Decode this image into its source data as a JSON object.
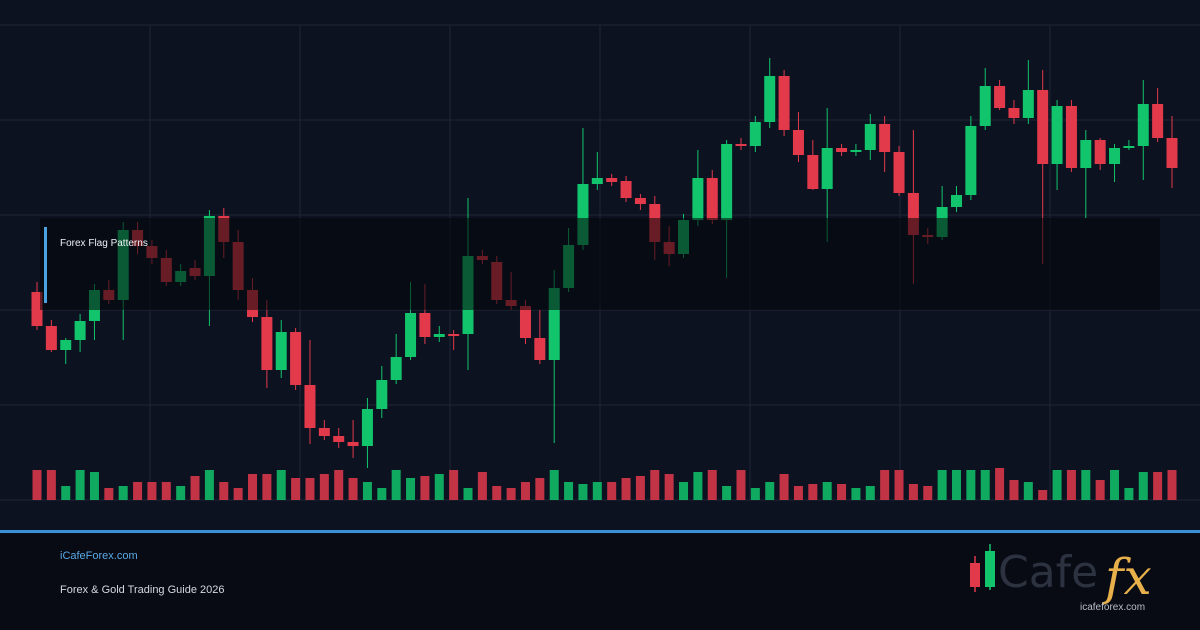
{
  "chart_data": {
    "type": "candlestick",
    "title": "Forex Flag Patterns",
    "up_color": "#12c46b",
    "down_color": "#e23a4b",
    "grid": true,
    "ylim": [
      0,
      475
    ],
    "yticks": [
      0,
      95,
      190,
      285,
      380,
      475
    ],
    "volume_lim": [
      0,
      32
    ],
    "open": [
      208,
      174,
      150,
      160,
      179,
      210,
      200,
      270,
      254,
      242,
      218,
      232,
      224,
      284,
      258,
      210,
      183,
      130,
      168,
      115,
      72,
      64,
      58,
      54,
      91,
      120,
      143,
      187,
      163,
      166,
      166,
      244,
      238,
      200,
      194,
      162,
      140,
      212,
      255,
      316,
      322,
      319,
      302,
      296,
      258,
      246,
      280,
      322,
      280,
      356,
      354,
      378,
      424,
      370,
      345,
      311,
      352,
      348,
      350,
      376,
      348,
      307,
      265,
      263,
      293,
      305,
      374,
      414,
      392,
      382,
      410,
      336,
      394,
      332,
      360,
      336,
      352,
      354,
      396,
      362
    ],
    "high": [
      218,
      180,
      162,
      186,
      216,
      220,
      278,
      278,
      260,
      250,
      236,
      240,
      290,
      292,
      270,
      222,
      200,
      180,
      172,
      160,
      80,
      72,
      80,
      102,
      134,
      166,
      218,
      216,
      174,
      170,
      302,
      250,
      244,
      228,
      200,
      190,
      230,
      272,
      372,
      348,
      326,
      324,
      306,
      304,
      274,
      286,
      350,
      330,
      360,
      362,
      384,
      442,
      430,
      388,
      360,
      392,
      356,
      356,
      386,
      384,
      354,
      370,
      272,
      314,
      314,
      384,
      432,
      420,
      400,
      440,
      430,
      400,
      400,
      370,
      362,
      356,
      360,
      420,
      412,
      384
    ],
    "low": [
      170,
      148,
      136,
      148,
      160,
      196,
      160,
      246,
      236,
      214,
      214,
      220,
      174,
      242,
      200,
      178,
      112,
      122,
      110,
      56,
      60,
      52,
      42,
      32,
      82,
      116,
      140,
      156,
      158,
      150,
      130,
      236,
      196,
      190,
      156,
      136,
      57,
      208,
      250,
      310,
      314,
      298,
      290,
      240,
      234,
      242,
      274,
      276,
      222,
      350,
      348,
      372,
      364,
      338,
      310,
      258,
      344,
      344,
      340,
      328,
      304,
      216,
      256,
      260,
      288,
      300,
      370,
      390,
      376,
      376,
      236,
      310,
      328,
      282,
      330,
      318,
      350,
      320,
      358,
      312
    ],
    "close": [
      174,
      150,
      160,
      179,
      210,
      200,
      270,
      254,
      242,
      218,
      229,
      224,
      284,
      258,
      210,
      183,
      130,
      168,
      115,
      72,
      64,
      58,
      54,
      91,
      120,
      143,
      187,
      163,
      166,
      164,
      244,
      240,
      200,
      194,
      162,
      140,
      212,
      255,
      316,
      322,
      318,
      302,
      296,
      258,
      246,
      280,
      322,
      280,
      356,
      354,
      378,
      424,
      370,
      345,
      311,
      352,
      348,
      350,
      376,
      348,
      307,
      265,
      263,
      293,
      305,
      374,
      414,
      392,
      382,
      410,
      336,
      394,
      332,
      360,
      336,
      352,
      354,
      396,
      362,
      332
    ],
    "volume": [
      30,
      30,
      14,
      30,
      28,
      12,
      14,
      18,
      18,
      18,
      14,
      24,
      30,
      18,
      12,
      26,
      26,
      30,
      22,
      22,
      26,
      30,
      22,
      18,
      12,
      30,
      22,
      24,
      26,
      30,
      12,
      28,
      14,
      12,
      18,
      22,
      30,
      18,
      16,
      18,
      18,
      22,
      24,
      30,
      26,
      18,
      28,
      30,
      14,
      30,
      12,
      18,
      26,
      14,
      16,
      18,
      16,
      12,
      14,
      30,
      30,
      16,
      14,
      30,
      30,
      30,
      30,
      32,
      20,
      18,
      10,
      30,
      30,
      30,
      20,
      30,
      12,
      28,
      28,
      30
    ]
  },
  "footer": {
    "site": "iCafeForex.com",
    "tagline": "Forex & Gold Trading Guide 2026",
    "logo_word": "Cafe",
    "logo_accent": "fx",
    "logo_url": "icafeforex.com"
  }
}
